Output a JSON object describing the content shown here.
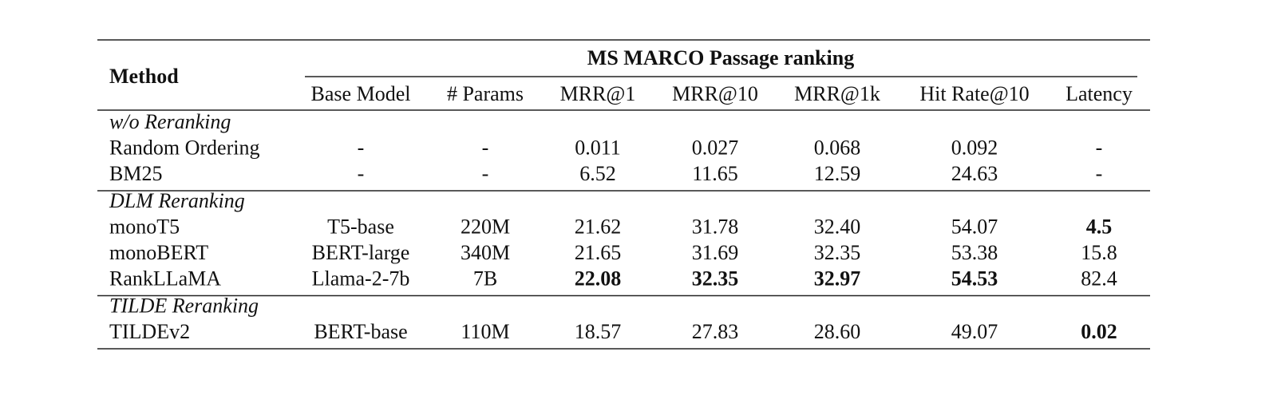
{
  "table": {
    "method_header": "Method",
    "group_header": "MS MARCO Passage ranking",
    "subheaders": [
      "Base Model",
      "# Params",
      "MRR@1",
      "MRR@10",
      "MRR@1k",
      "Hit Rate@10",
      "Latency"
    ],
    "groups": [
      {
        "title": "w/o Reranking",
        "rows": [
          {
            "cells": [
              "Random Ordering",
              "-",
              "-",
              "0.011",
              "0.027",
              "0.068",
              "0.092",
              "-"
            ]
          },
          {
            "cells": [
              "BM25",
              "-",
              "-",
              "6.52",
              "11.65",
              "12.59",
              "24.63",
              "-"
            ]
          }
        ]
      },
      {
        "title": "DLM Reranking",
        "rows": [
          {
            "cells": [
              "monoT5",
              "T5-base",
              "220M",
              "21.62",
              "31.78",
              "32.40",
              "54.07",
              "4.5"
            ],
            "bold": [
              7
            ]
          },
          {
            "cells": [
              "monoBERT",
              "BERT-large",
              "340M",
              "21.65",
              "31.69",
              "32.35",
              "53.38",
              "15.8"
            ]
          },
          {
            "cells": [
              "RankLLaMA",
              "Llama-2-7b",
              "7B",
              "22.08",
              "32.35",
              "32.97",
              "54.53",
              "82.4"
            ],
            "bold": [
              3,
              4,
              5,
              6
            ]
          }
        ]
      },
      {
        "title": "TILDE Reranking",
        "rows": [
          {
            "cells": [
              "TILDEv2",
              "BERT-base",
              "110M",
              "18.57",
              "27.83",
              "28.60",
              "49.07",
              "0.02"
            ],
            "bold": [
              7
            ]
          }
        ]
      }
    ]
  }
}
